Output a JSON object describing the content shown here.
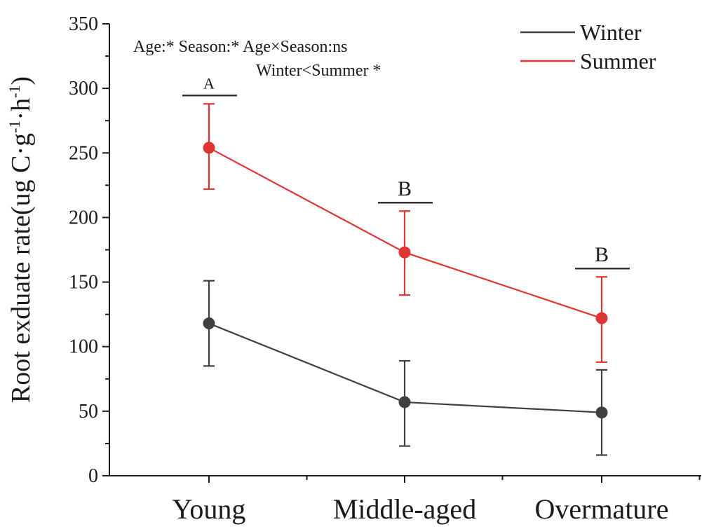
{
  "chart_data": {
    "type": "line",
    "categories": [
      "Young",
      "Middle-aged",
      "Overmature"
    ],
    "series": [
      {
        "name": "Winter",
        "color": "#404040",
        "values": [
          118,
          57,
          49
        ],
        "error_low": [
          85,
          23,
          16
        ],
        "error_high": [
          151,
          89,
          82
        ]
      },
      {
        "name": "Summer",
        "color": "#e03535",
        "values": [
          254,
          173,
          122
        ],
        "error_low": [
          222,
          140,
          88
        ],
        "error_high": [
          288,
          205,
          154
        ]
      }
    ],
    "ylabel": "Root exduate rate(ug C·g⁻¹·h⁻¹)",
    "xlabel": "",
    "ylim": [
      0,
      350
    ],
    "yticks": [
      0,
      50,
      100,
      150,
      200,
      250,
      300,
      350
    ],
    "legend": "top-right",
    "grid": false,
    "annotations": {
      "stats_line1": "Age:* Season:* Age×Season:ns",
      "stats_line2": "Winter<Summer *"
    },
    "group_letters": [
      "A",
      "B",
      "B"
    ]
  }
}
